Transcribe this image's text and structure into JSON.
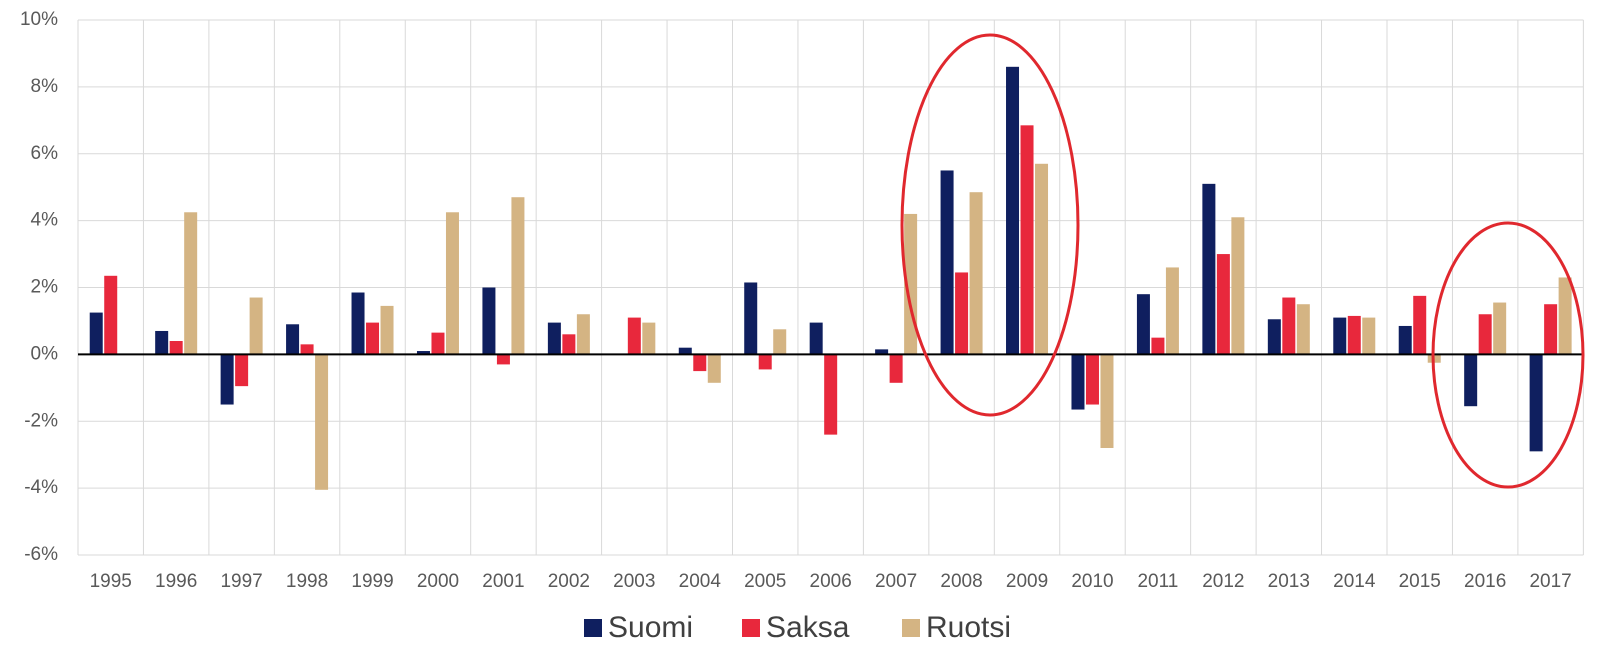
{
  "chart_data": {
    "type": "bar",
    "categories": [
      "1995",
      "1996",
      "1997",
      "1998",
      "1999",
      "2000",
      "2001",
      "2002",
      "2003",
      "2004",
      "2005",
      "2006",
      "2007",
      "2008",
      "2009",
      "2010",
      "2011",
      "2012",
      "2013",
      "2014",
      "2015",
      "2016",
      "2017"
    ],
    "series": [
      {
        "name": "Suomi",
        "color": "#0f1f5f",
        "values": [
          1.25,
          0.7,
          -1.5,
          0.9,
          1.85,
          0.1,
          2.0,
          0.95,
          0,
          0.2,
          2.15,
          0.95,
          0.15,
          5.5,
          8.6,
          -1.65,
          1.8,
          5.1,
          1.05,
          1.1,
          0.85,
          -1.55,
          -2.9
        ]
      },
      {
        "name": "Saksa",
        "color": "#e8283c",
        "values": [
          2.35,
          0.4,
          -0.95,
          0.3,
          0.95,
          0.65,
          -0.3,
          0.6,
          1.1,
          -0.5,
          -0.45,
          -2.4,
          -0.85,
          2.45,
          6.85,
          -1.5,
          0.5,
          3.0,
          1.7,
          1.15,
          1.75,
          1.2,
          1.5
        ]
      },
      {
        "name": "Ruotsi",
        "color": "#d4b483",
        "values": [
          null,
          4.25,
          1.7,
          -4.05,
          1.45,
          4.25,
          4.7,
          1.2,
          0.95,
          -0.85,
          0.75,
          0,
          4.2,
          4.85,
          5.7,
          -2.8,
          2.6,
          4.1,
          1.5,
          1.1,
          -0.25,
          1.55,
          2.3
        ]
      }
    ],
    "ylim": [
      -6,
      10
    ],
    "yticks": [
      {
        "value": -6,
        "label": "-6%"
      },
      {
        "value": -4,
        "label": "-4%"
      },
      {
        "value": -2,
        "label": "-2%"
      },
      {
        "value": 0,
        "label": "0%"
      },
      {
        "value": 2,
        "label": "2%"
      },
      {
        "value": 4,
        "label": "4%"
      },
      {
        "value": 6,
        "label": "6%"
      },
      {
        "value": 8,
        "label": "8%"
      },
      {
        "value": 10,
        "label": "10%"
      }
    ],
    "grid": true,
    "legend": "bottom"
  }
}
